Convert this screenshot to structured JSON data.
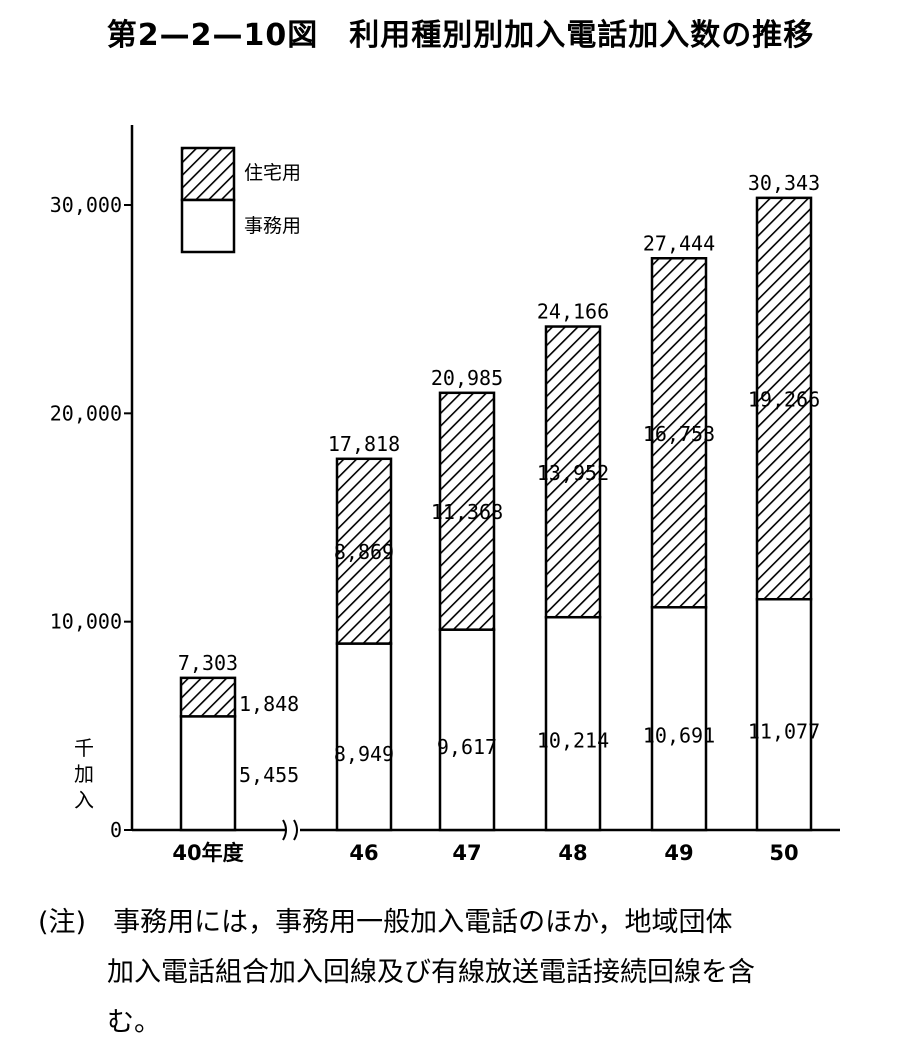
{
  "title": "第2—2—10図　利用種別別加入電話加入数の推移",
  "chart_data": {
    "type": "bar",
    "stacked": true,
    "categories": [
      "40年度",
      "46",
      "47",
      "48",
      "49",
      "50"
    ],
    "series": [
      {
        "name": "事務用",
        "values": [
          5455,
          8949,
          9617,
          10214,
          10691,
          11077
        ],
        "value_labels": [
          "5,455",
          "8,949",
          "9,617",
          "10,214",
          "10,691",
          "11,077"
        ],
        "color": "#ffffff"
      },
      {
        "name": "住宅用",
        "values": [
          1848,
          8869,
          11368,
          13952,
          16753,
          19266
        ],
        "value_labels": [
          "1,848",
          "8,869",
          "11,368",
          "13,952",
          "16,753",
          "19,266"
        ],
        "pattern": "hatched"
      }
    ],
    "totals": [
      7303,
      17818,
      20985,
      24166,
      27444,
      30343
    ],
    "total_labels": [
      "7,303",
      "17,818",
      "20,985",
      "24,166",
      "27,444",
      "30,343"
    ],
    "y_ticks": [
      "0",
      "10,000",
      "20,000",
      "30,000"
    ],
    "y_tick_values": [
      0,
      10000,
      20000,
      30000
    ],
    "ylim": [
      0,
      33000
    ],
    "ylabel": "千加入",
    "legend": {
      "placement": "top-left",
      "items": [
        "住宅用",
        "事務用"
      ]
    },
    "axis_break_after_first": true
  },
  "note": {
    "lines": [
      "(注)　事務用には，事務用一般加入電話のほか，地域団体",
      "加入電話組合加入回線及び有線放送電話接続回線を含",
      "む。"
    ]
  }
}
